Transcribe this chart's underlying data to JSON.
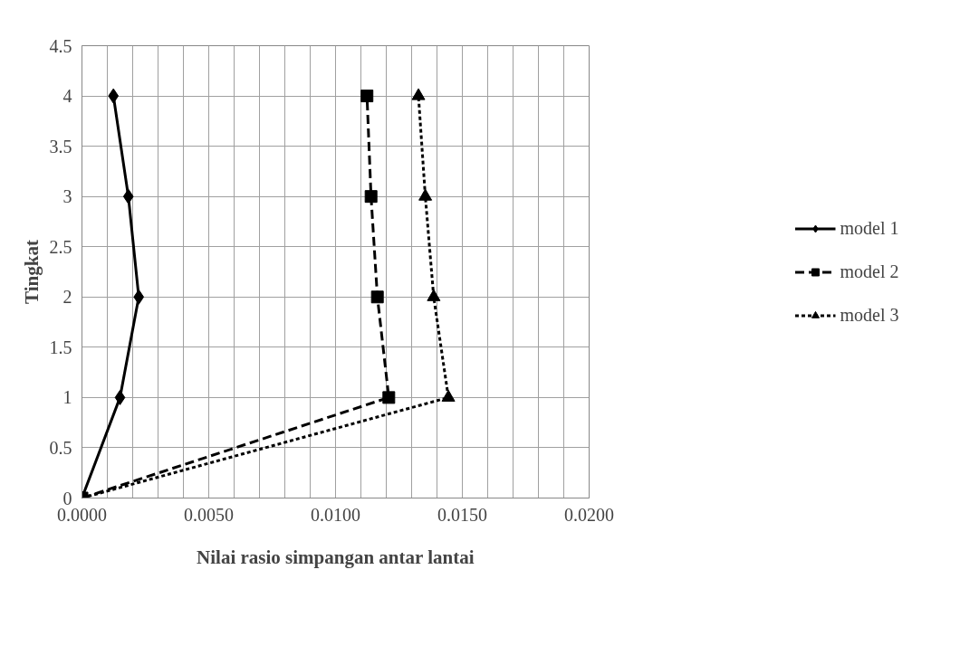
{
  "chart_data": {
    "type": "line",
    "xlabel": "Nilai rasio simpangan antar lantai",
    "ylabel": "Tingkat",
    "xlim": [
      0,
      0.02
    ],
    "ylim": [
      0,
      4.5
    ],
    "xticks": [
      {
        "value": 0,
        "label": "0.0000"
      },
      {
        "value": 0.001,
        "label": null
      },
      {
        "value": 0.002,
        "label": null
      },
      {
        "value": 0.003,
        "label": null
      },
      {
        "value": 0.004,
        "label": null
      },
      {
        "value": 0.005,
        "label": "0.0050"
      },
      {
        "value": 0.006,
        "label": null
      },
      {
        "value": 0.007,
        "label": null
      },
      {
        "value": 0.008,
        "label": null
      },
      {
        "value": 0.009,
        "label": null
      },
      {
        "value": 0.01,
        "label": "0.0100"
      },
      {
        "value": 0.011,
        "label": null
      },
      {
        "value": 0.012,
        "label": null
      },
      {
        "value": 0.013,
        "label": null
      },
      {
        "value": 0.014,
        "label": null
      },
      {
        "value": 0.015,
        "label": "0.0150"
      },
      {
        "value": 0.016,
        "label": null
      },
      {
        "value": 0.017,
        "label": null
      },
      {
        "value": 0.018,
        "label": null
      },
      {
        "value": 0.019,
        "label": null
      },
      {
        "value": 0.02,
        "label": "0.0200"
      }
    ],
    "yticks": [
      0,
      0.5,
      1,
      1.5,
      2,
      2.5,
      3,
      3.5,
      4,
      4.5
    ],
    "grid": true,
    "legend": "right",
    "series": [
      {
        "name": "model 1",
        "color": "#000000",
        "marker": "diamond",
        "line_style": "solid",
        "x": [
          0,
          0.0015,
          0.00224,
          0.00183,
          0.00124
        ],
        "values": [
          0,
          1,
          2,
          3,
          4
        ]
      },
      {
        "name": "model 2",
        "color": "#000000",
        "marker": "square",
        "line_style": "dashed",
        "x": [
          0,
          0.0121,
          0.01165,
          0.0114,
          0.01124
        ],
        "values": [
          0,
          1,
          2,
          3,
          4
        ]
      },
      {
        "name": "model 3",
        "color": "#000000",
        "marker": "triangle",
        "line_style": "dotted",
        "x": [
          0,
          0.01445,
          0.01387,
          0.01354,
          0.01327
        ],
        "values": [
          0,
          1,
          2,
          3,
          4
        ]
      }
    ]
  }
}
